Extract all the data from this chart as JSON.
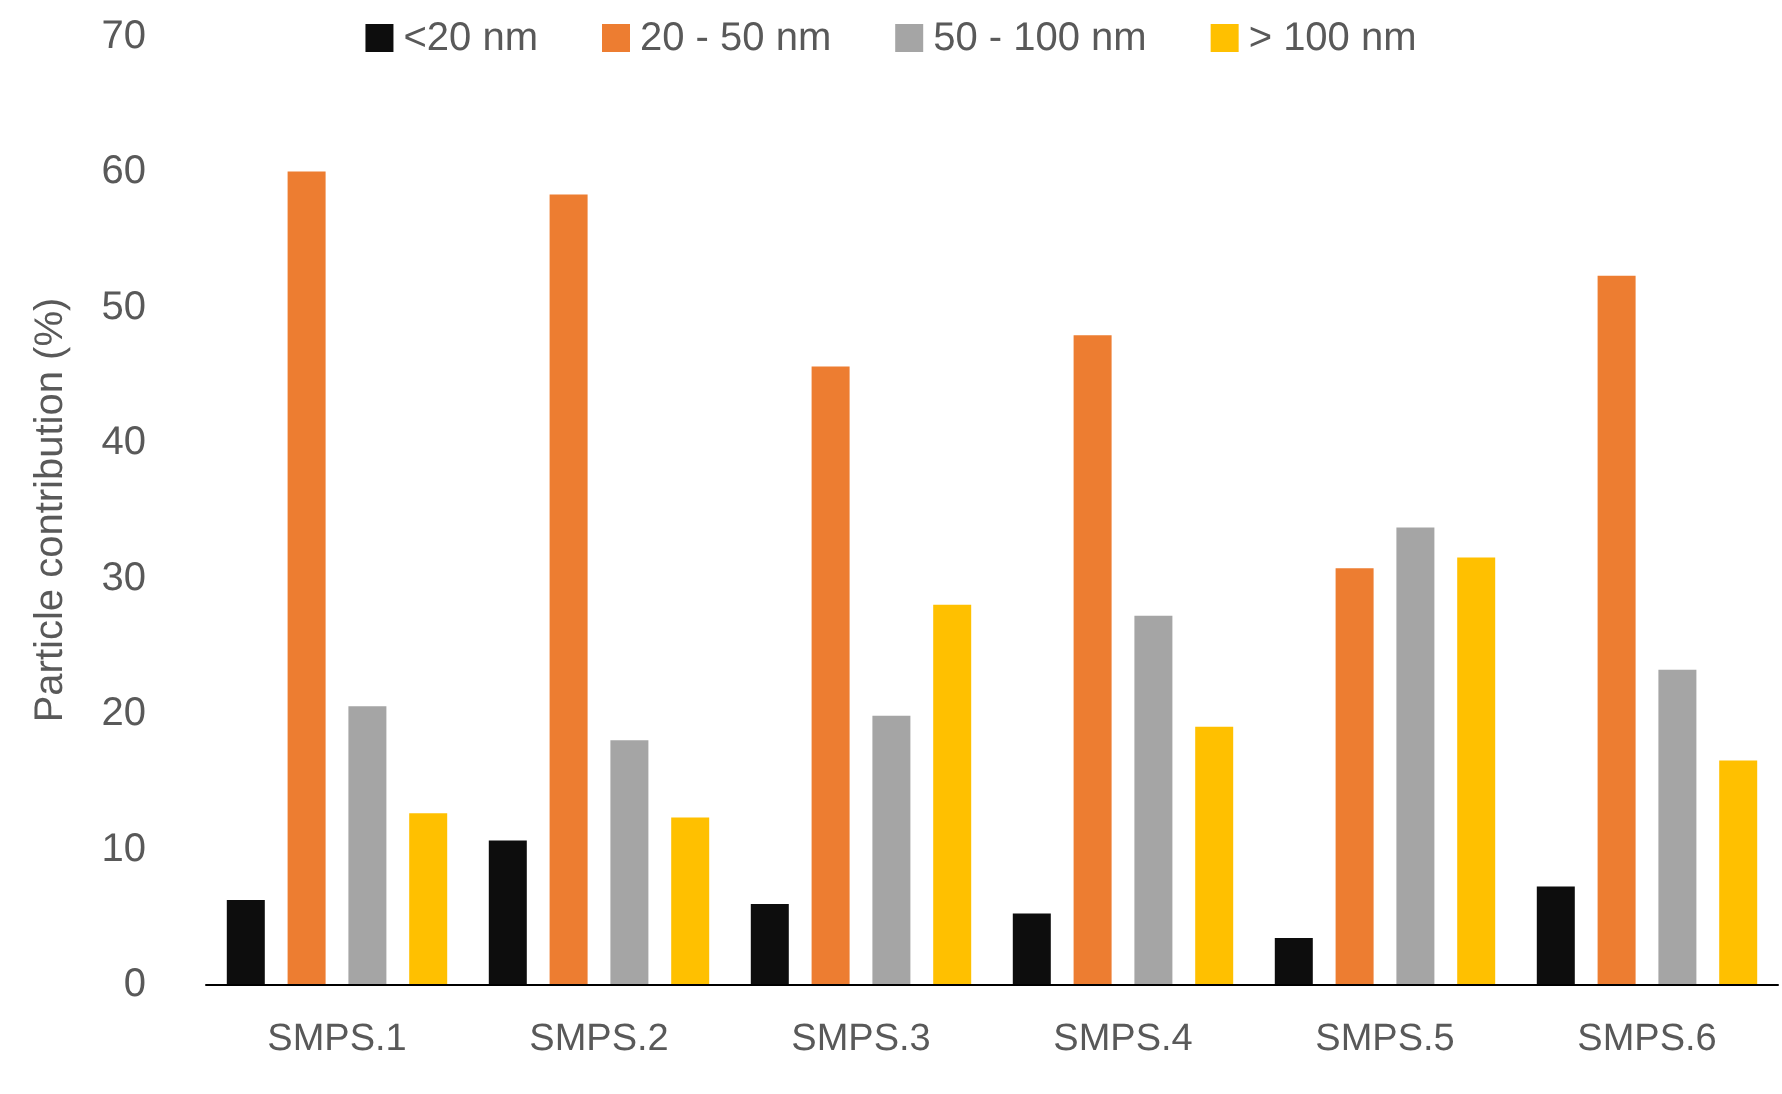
{
  "chart_data": {
    "type": "bar",
    "ylabel": "Particle contribution (%)",
    "categories": [
      "SMPS.1",
      "SMPS.2",
      "SMPS.3",
      "SMPS.4",
      "SMPS.5",
      "SMPS.6"
    ],
    "series": [
      {
        "name": "<20 nm",
        "color": "#0d0d0d",
        "values": [
          6.2,
          10.6,
          5.9,
          5.2,
          3.4,
          7.2
        ]
      },
      {
        "name": "20 - 50 nm",
        "color": "#ed7d31",
        "values": [
          60,
          58.3,
          45.6,
          47.9,
          30.7,
          52.3
        ]
      },
      {
        "name": "50 - 100 nm",
        "color": "#a5a5a5",
        "values": [
          20.5,
          18,
          19.8,
          27.2,
          33.7,
          23.2
        ]
      },
      {
        "name": "> 100 nm",
        "color": "#ffc000",
        "values": [
          12.6,
          12.3,
          28,
          19,
          31.5,
          16.5
        ]
      }
    ],
    "ylim": [
      0,
      70
    ],
    "yticks": [
      0,
      10,
      20,
      30,
      40,
      50,
      60,
      70
    ],
    "grid": false,
    "legend": "top"
  }
}
